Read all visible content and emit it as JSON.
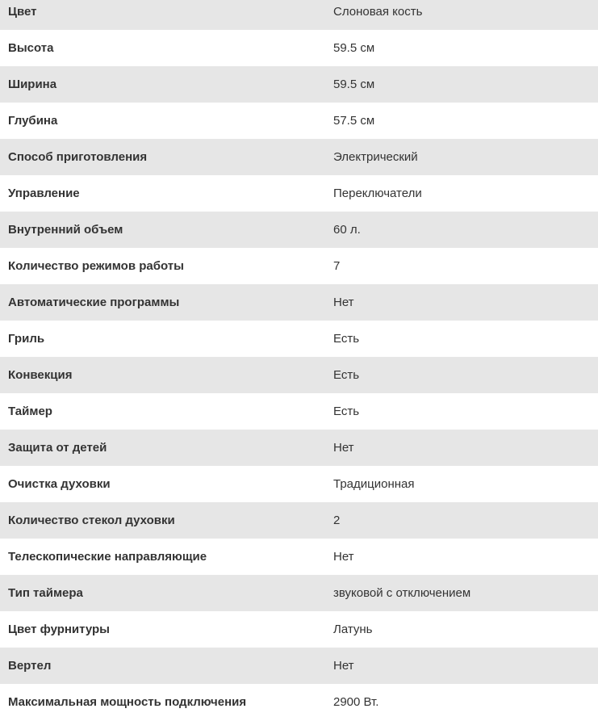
{
  "colors": {
    "row_alt_bg": "#e6e6e6",
    "row_bg": "#ffffff",
    "text": "#333333"
  },
  "table": {
    "rows": [
      {
        "label": "Цвет",
        "value": "Слоновая кость"
      },
      {
        "label": "Высота",
        "value": "59.5 см"
      },
      {
        "label": "Ширина",
        "value": "59.5 см"
      },
      {
        "label": "Глубина",
        "value": "57.5 см"
      },
      {
        "label": "Способ приготовления",
        "value": "Электрический"
      },
      {
        "label": "Управление",
        "value": "Переключатели"
      },
      {
        "label": "Внутренний объем",
        "value": "60 л."
      },
      {
        "label": "Количество режимов работы",
        "value": "7"
      },
      {
        "label": "Автоматические программы",
        "value": "Нет"
      },
      {
        "label": "Гриль",
        "value": "Есть"
      },
      {
        "label": "Конвекция",
        "value": "Есть"
      },
      {
        "label": "Таймер",
        "value": "Есть"
      },
      {
        "label": "Защита от детей",
        "value": "Нет"
      },
      {
        "label": "Очистка духовки",
        "value": "Традиционная"
      },
      {
        "label": "Количество стекол духовки",
        "value": "2"
      },
      {
        "label": "Телескопические направляющие",
        "value": "Нет"
      },
      {
        "label": "Тип таймера",
        "value": "звуковой с отключением"
      },
      {
        "label": "Цвет фурнитуры",
        "value": "Латунь"
      },
      {
        "label": "Вертел",
        "value": "Нет"
      },
      {
        "label": "Максимальная мощность подключения",
        "value": "2900 Вт."
      }
    ]
  }
}
